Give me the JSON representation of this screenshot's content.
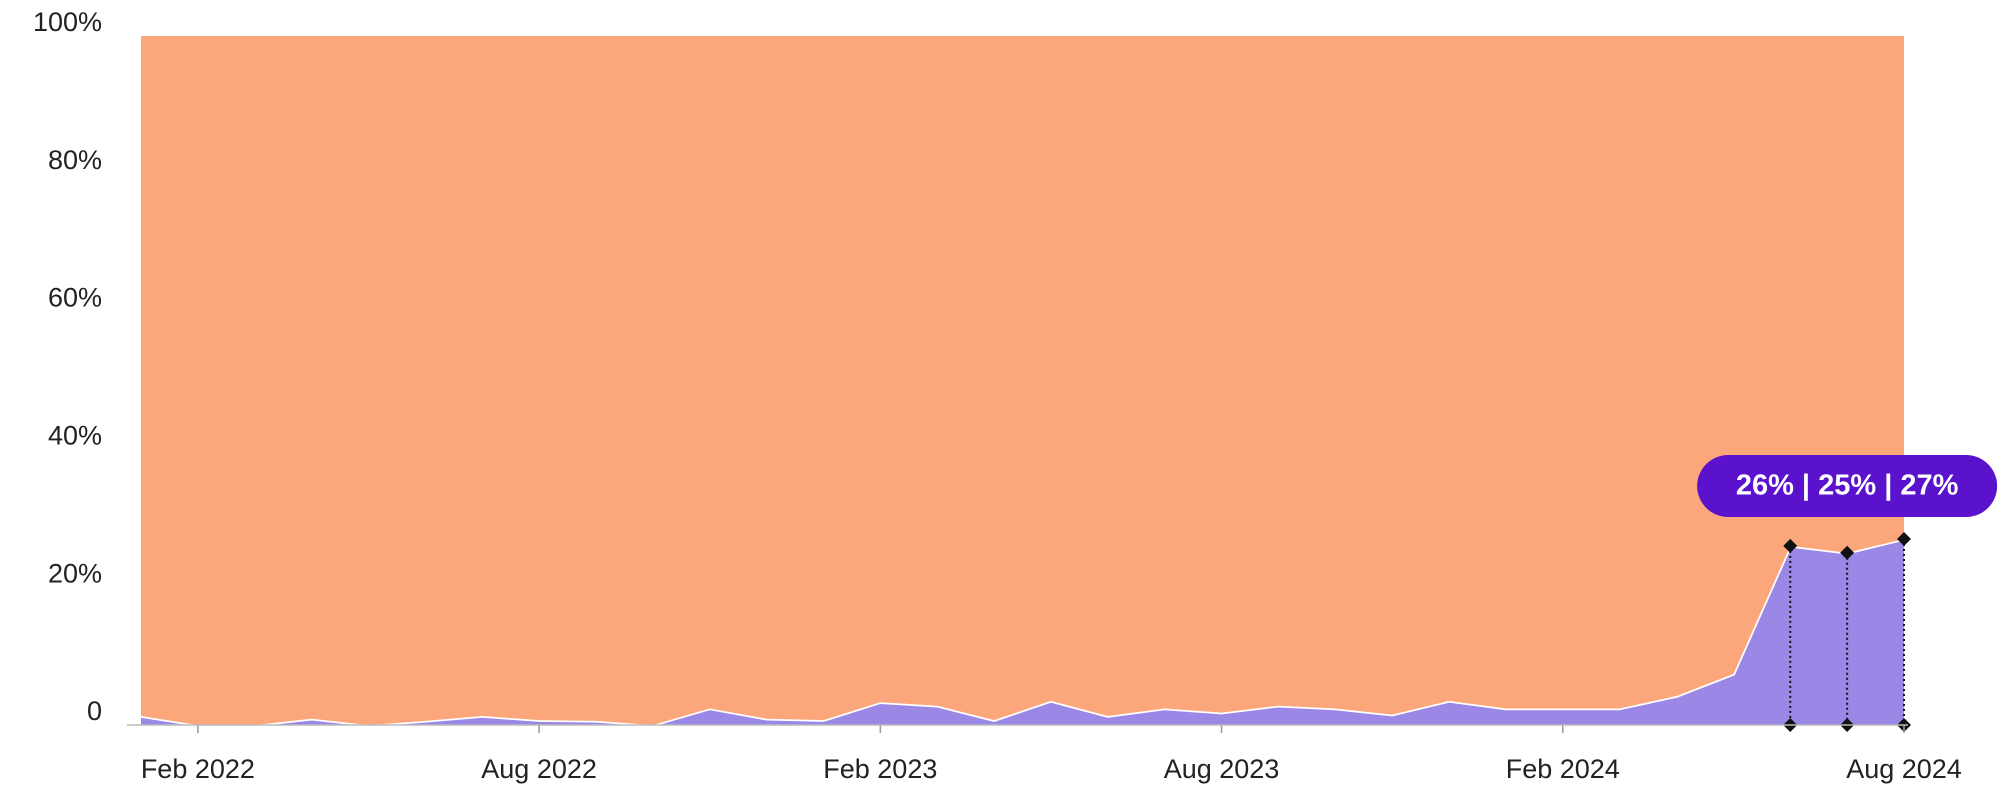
{
  "chart_data": {
    "type": "stacked_area",
    "x": [
      "2022-01",
      "2022-02",
      "2022-03",
      "2022-04",
      "2022-05",
      "2022-06",
      "2022-07",
      "2022-08",
      "2022-09",
      "2022-10",
      "2022-11",
      "2022-12",
      "2023-01",
      "2023-02",
      "2023-03",
      "2023-04",
      "2023-05",
      "2023-06",
      "2023-07",
      "2023-08",
      "2023-09",
      "2023-10",
      "2023-11",
      "2023-12",
      "2024-01",
      "2024-02",
      "2024-03",
      "2024-04",
      "2024-05",
      "2024-06",
      "2024-07",
      "2024-08"
    ],
    "xlim": [
      "2022-01",
      "2024-08"
    ],
    "xticks": [
      {
        "value": "2022-02",
        "label": "Feb 2022"
      },
      {
        "value": "2022-08",
        "label": "Aug 2022"
      },
      {
        "value": "2023-02",
        "label": "Feb 2023"
      },
      {
        "value": "2023-08",
        "label": "Aug 2023"
      },
      {
        "value": "2024-02",
        "label": "Feb 2024"
      },
      {
        "value": "2024-08",
        "label": "Aug 2024"
      }
    ],
    "ylim": [
      0,
      100
    ],
    "yticks": [
      0,
      {
        "value": 20,
        "label": "20%"
      },
      {
        "value": 40,
        "label": "40%"
      },
      {
        "value": 60,
        "label": "60%"
      },
      {
        "value": 80,
        "label": "80%"
      },
      {
        "value": 100,
        "label": "100%"
      }
    ],
    "series": [
      {
        "color": "#9b87e6",
        "values": [
          1.3,
          0,
          0,
          0.9,
          0,
          0.6,
          1.3,
          0.7,
          0.6,
          0,
          2.4,
          0.9,
          0.7,
          3.3,
          2.8,
          0.7,
          3.5,
          1.3,
          2.4,
          1.8,
          2.8,
          2.4,
          1.5,
          3.5,
          2.4,
          2.4,
          2.4,
          4.2,
          7.4,
          26,
          25,
          27
        ]
      },
      {
        "color": "#fca77b",
        "values": [
          98.7,
          100,
          100,
          99.1,
          100,
          99.4,
          98.7,
          99.3,
          99.4,
          100,
          97.6,
          99.1,
          99.3,
          96.7,
          97.2,
          99.3,
          96.5,
          98.7,
          97.6,
          98.2,
          97.2,
          97.6,
          98.5,
          96.5,
          97.6,
          97.6,
          97.6,
          95.8,
          92.6,
          74,
          75,
          73
        ]
      }
    ],
    "annotation": "26% | 25% | 27%",
    "annotation_color": "#5a12cc"
  }
}
